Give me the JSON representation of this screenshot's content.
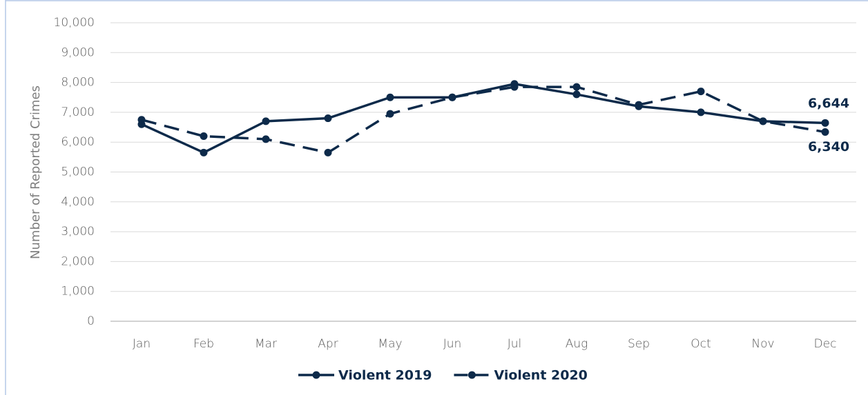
{
  "chart_data": {
    "type": "line",
    "y_label": "Number of Reported Crimes",
    "categories": [
      "Jan",
      "Feb",
      "Mar",
      "Apr",
      "May",
      "Jun",
      "Jul",
      "Aug",
      "Sep",
      "Oct",
      "Nov",
      "Dec"
    ],
    "series": [
      {
        "name": "Violent 2019",
        "color": "#0d2a4a",
        "dashed": false,
        "values": [
          6600,
          5650,
          6700,
          6800,
          7500,
          7500,
          7950,
          7600,
          7200,
          7000,
          6700,
          6644
        ],
        "value_labels": [
          null,
          null,
          null,
          null,
          null,
          null,
          null,
          null,
          null,
          null,
          null,
          "6,644"
        ]
      },
      {
        "name": "Violent 2020",
        "color": "#0d2a4a",
        "dashed": true,
        "values": [
          6750,
          6200,
          6100,
          5650,
          6950,
          7500,
          7850,
          7850,
          7250,
          7700,
          6700,
          6340
        ],
        "value_labels": [
          null,
          null,
          null,
          null,
          null,
          null,
          null,
          null,
          null,
          null,
          null,
          "6,340"
        ]
      }
    ],
    "ylim": [
      0,
      10000
    ],
    "yticks": [
      0,
      {
        "value": 1000,
        "label": "1,000"
      },
      {
        "value": 2000,
        "label": "2,000"
      },
      {
        "value": 3000,
        "label": "3,000"
      },
      {
        "value": 4000,
        "label": "4,000"
      },
      {
        "value": 5000,
        "label": "5,000"
      },
      {
        "value": 6000,
        "label": "6,000"
      },
      {
        "value": 7000,
        "label": "7,000"
      },
      {
        "value": 8000,
        "label": "8,000"
      },
      {
        "value": 9000,
        "label": "9,000"
      },
      {
        "value": 10000,
        "label": "10,000"
      }
    ],
    "grid": true,
    "legend": "bottom"
  }
}
